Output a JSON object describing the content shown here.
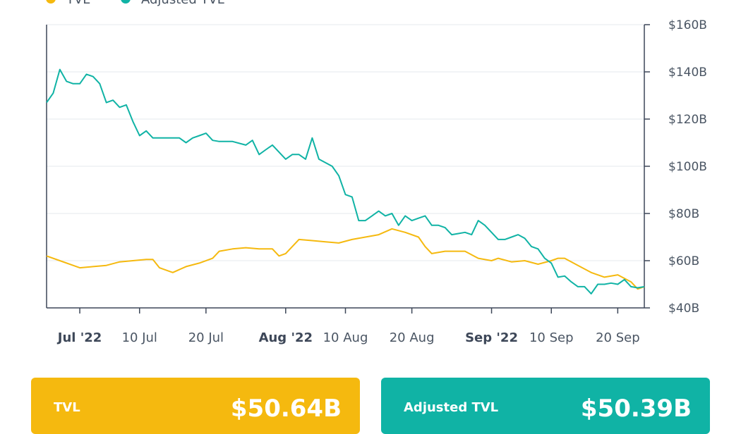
{
  "chart_data": {
    "type": "line",
    "legend": {
      "placement": "top-left",
      "items": [
        "TVL",
        "Adjusted TVL"
      ]
    },
    "x_tick_labels": [
      {
        "label": "Jul '22",
        "bold": true
      },
      {
        "label": "10 Jul",
        "bold": false
      },
      {
        "label": "20 Jul",
        "bold": false
      },
      {
        "label": "Aug '22",
        "bold": true
      },
      {
        "label": "10 Aug",
        "bold": false
      },
      {
        "label": "20 Aug",
        "bold": false
      },
      {
        "label": "Sep '22",
        "bold": true
      },
      {
        "label": "10 Sep",
        "bold": false
      },
      {
        "label": "20 Sep",
        "bold": false
      }
    ],
    "y_tick_labels": [
      "$40B",
      "$60B",
      "$80B",
      "$100B",
      "$120B",
      "$140B",
      "$160B"
    ],
    "ylim": [
      40,
      160
    ],
    "y_unit": "$B",
    "x_start": "2022-06-26",
    "x_end": "2022-09-24",
    "grid": "horizontal",
    "series": [
      {
        "name": "TVL",
        "color": "#f5b90f",
        "points": [
          [
            "2022-06-26",
            62
          ],
          [
            "2022-06-28",
            60
          ],
          [
            "2022-06-30",
            58
          ],
          [
            "2022-07-01",
            57
          ],
          [
            "2022-07-03",
            57.5
          ],
          [
            "2022-07-05",
            58
          ],
          [
            "2022-07-07",
            59.5
          ],
          [
            "2022-07-09",
            60
          ],
          [
            "2022-07-11",
            60.5
          ],
          [
            "2022-07-12",
            60.5
          ],
          [
            "2022-07-13",
            57
          ],
          [
            "2022-07-15",
            55
          ],
          [
            "2022-07-17",
            57.5
          ],
          [
            "2022-07-19",
            59
          ],
          [
            "2022-07-21",
            61
          ],
          [
            "2022-07-22",
            64
          ],
          [
            "2022-07-24",
            65
          ],
          [
            "2022-07-26",
            65.5
          ],
          [
            "2022-07-28",
            65
          ],
          [
            "2022-07-30",
            65
          ],
          [
            "2022-07-31",
            62
          ],
          [
            "2022-08-01",
            63
          ],
          [
            "2022-08-03",
            69
          ],
          [
            "2022-08-05",
            68.5
          ],
          [
            "2022-08-07",
            68
          ],
          [
            "2022-08-09",
            67.5
          ],
          [
            "2022-08-11",
            69
          ],
          [
            "2022-08-13",
            70
          ],
          [
            "2022-08-15",
            71
          ],
          [
            "2022-08-17",
            73.5
          ],
          [
            "2022-08-19",
            72
          ],
          [
            "2022-08-21",
            70
          ],
          [
            "2022-08-22",
            66
          ],
          [
            "2022-08-23",
            63
          ],
          [
            "2022-08-25",
            64
          ],
          [
            "2022-08-27",
            64
          ],
          [
            "2022-08-28",
            64
          ],
          [
            "2022-08-30",
            61
          ],
          [
            "2022-09-01",
            60
          ],
          [
            "2022-09-02",
            61
          ],
          [
            "2022-09-04",
            59.5
          ],
          [
            "2022-09-06",
            60
          ],
          [
            "2022-09-08",
            58.5
          ],
          [
            "2022-09-10",
            60
          ],
          [
            "2022-09-11",
            61
          ],
          [
            "2022-09-12",
            61
          ],
          [
            "2022-09-14",
            58
          ],
          [
            "2022-09-16",
            55
          ],
          [
            "2022-09-18",
            53
          ],
          [
            "2022-09-20",
            54
          ],
          [
            "2022-09-22",
            51
          ],
          [
            "2022-09-23",
            48
          ],
          [
            "2022-09-24",
            49
          ]
        ]
      },
      {
        "name": "Adjusted TVL",
        "color": "#10b3a5",
        "points": [
          [
            "2022-06-26",
            127
          ],
          [
            "2022-06-27",
            131
          ],
          [
            "2022-06-28",
            141
          ],
          [
            "2022-06-29",
            136
          ],
          [
            "2022-06-30",
            135
          ],
          [
            "2022-07-01",
            135
          ],
          [
            "2022-07-02",
            139
          ],
          [
            "2022-07-03",
            138
          ],
          [
            "2022-07-04",
            135
          ],
          [
            "2022-07-05",
            127
          ],
          [
            "2022-07-06",
            128
          ],
          [
            "2022-07-07",
            125
          ],
          [
            "2022-07-08",
            126
          ],
          [
            "2022-07-09",
            119
          ],
          [
            "2022-07-10",
            113
          ],
          [
            "2022-07-11",
            115
          ],
          [
            "2022-07-12",
            112
          ],
          [
            "2022-07-14",
            112
          ],
          [
            "2022-07-16",
            112
          ],
          [
            "2022-07-17",
            110
          ],
          [
            "2022-07-18",
            112
          ],
          [
            "2022-07-19",
            113
          ],
          [
            "2022-07-20",
            114
          ],
          [
            "2022-07-21",
            111
          ],
          [
            "2022-07-22",
            110.5
          ],
          [
            "2022-07-24",
            110.5
          ],
          [
            "2022-07-26",
            109
          ],
          [
            "2022-07-27",
            111
          ],
          [
            "2022-07-28",
            105
          ],
          [
            "2022-07-29",
            107
          ],
          [
            "2022-07-30",
            109
          ],
          [
            "2022-07-31",
            106
          ],
          [
            "2022-08-01",
            103
          ],
          [
            "2022-08-02",
            105
          ],
          [
            "2022-08-03",
            105
          ],
          [
            "2022-08-04",
            103
          ],
          [
            "2022-08-05",
            112
          ],
          [
            "2022-08-06",
            103
          ],
          [
            "2022-08-08",
            100
          ],
          [
            "2022-08-09",
            96
          ],
          [
            "2022-08-10",
            88
          ],
          [
            "2022-08-11",
            87
          ],
          [
            "2022-08-12",
            77
          ],
          [
            "2022-08-13",
            77
          ],
          [
            "2022-08-14",
            79
          ],
          [
            "2022-08-15",
            81
          ],
          [
            "2022-08-16",
            79
          ],
          [
            "2022-08-17",
            80
          ],
          [
            "2022-08-18",
            75
          ],
          [
            "2022-08-19",
            79
          ],
          [
            "2022-08-20",
            77
          ],
          [
            "2022-08-21",
            78
          ],
          [
            "2022-08-22",
            79
          ],
          [
            "2022-08-23",
            75
          ],
          [
            "2022-08-24",
            75
          ],
          [
            "2022-08-25",
            74
          ],
          [
            "2022-08-26",
            71
          ],
          [
            "2022-08-27",
            71.5
          ],
          [
            "2022-08-28",
            72
          ],
          [
            "2022-08-29",
            71
          ],
          [
            "2022-08-30",
            77
          ],
          [
            "2022-08-31",
            75
          ],
          [
            "2022-09-01",
            72
          ],
          [
            "2022-09-02",
            69
          ],
          [
            "2022-09-03",
            69
          ],
          [
            "2022-09-04",
            70
          ],
          [
            "2022-09-05",
            71
          ],
          [
            "2022-09-06",
            69.5
          ],
          [
            "2022-09-07",
            66
          ],
          [
            "2022-09-08",
            65
          ],
          [
            "2022-09-09",
            61
          ],
          [
            "2022-09-10",
            59
          ],
          [
            "2022-09-11",
            53
          ],
          [
            "2022-09-12",
            53.5
          ],
          [
            "2022-09-13",
            51
          ],
          [
            "2022-09-14",
            49
          ],
          [
            "2022-09-15",
            49
          ],
          [
            "2022-09-16",
            46
          ],
          [
            "2022-09-17",
            50
          ],
          [
            "2022-09-18",
            50
          ],
          [
            "2022-09-19",
            50.5
          ],
          [
            "2022-09-20",
            50
          ],
          [
            "2022-09-21",
            52
          ],
          [
            "2022-09-22",
            49
          ],
          [
            "2022-09-23",
            48.5
          ],
          [
            "2022-09-24",
            49
          ]
        ]
      }
    ]
  },
  "cards": {
    "tvl": {
      "label": "TVL",
      "value": "$50.64B"
    },
    "adjusted": {
      "label": "Adjusted TVL",
      "value": "$50.39B"
    }
  }
}
